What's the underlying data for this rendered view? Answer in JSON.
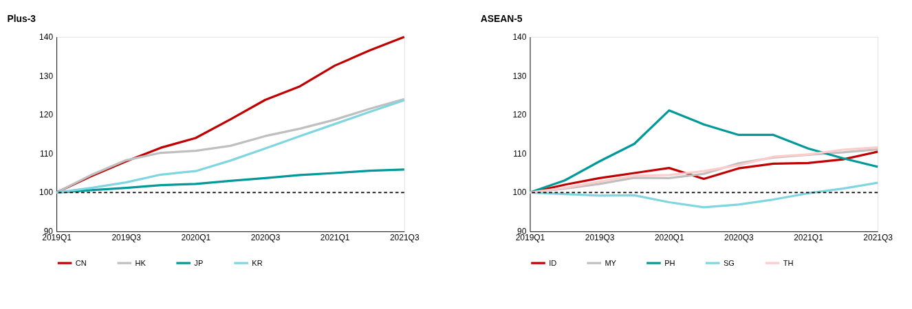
{
  "chart_data": [
    {
      "type": "line",
      "title": "Plus-3",
      "categories": [
        "2019Q1",
        null,
        "2019Q3",
        null,
        "2020Q1",
        null,
        "2020Q3",
        null,
        "2021Q1",
        null,
        "2021Q3"
      ],
      "ylim": [
        90,
        140
      ],
      "yticks": [
        90,
        100,
        110,
        120,
        130,
        140
      ],
      "grid": false,
      "legend": "bottom",
      "line_style": "solid",
      "series": [
        {
          "name": "CN",
          "color": "#c00000",
          "values": [
            100,
            104.2,
            108,
            111.5,
            114,
            118.8,
            123.8,
            127.3,
            132.6,
            136.5,
            140
          ]
        },
        {
          "name": "HK",
          "color": "#bfbfbf",
          "values": [
            100,
            104.5,
            108.3,
            110.2,
            110.7,
            112,
            114.5,
            116.4,
            118.7,
            121.5,
            124
          ]
        },
        {
          "name": "JP",
          "color": "#009999",
          "values": [
            100,
            100.6,
            101.2,
            101.9,
            102.2,
            103,
            103.7,
            104.5,
            105,
            105.6,
            105.9
          ]
        },
        {
          "name": "KR",
          "color": "#7fd6e0",
          "values": [
            100,
            101.2,
            102.6,
            104.6,
            105.5,
            108.2,
            111.3,
            114.5,
            117.6,
            120.7,
            123.7
          ]
        }
      ],
      "ref_lines": [
        {
          "axis": "y",
          "value": 100,
          "color": "#000000",
          "line_style": "dashed"
        }
      ]
    },
    {
      "type": "line",
      "title": "ASEAN-5",
      "categories": [
        "2019Q1",
        null,
        "2019Q3",
        null,
        "2020Q1",
        null,
        "2020Q3",
        null,
        "2021Q1",
        null,
        "2021Q3"
      ],
      "ylim": [
        90,
        140
      ],
      "yticks": [
        90,
        100,
        110,
        120,
        130,
        140
      ],
      "grid": false,
      "legend": "bottom",
      "line_style": "solid",
      "series": [
        {
          "name": "ID",
          "color": "#c00000",
          "values": [
            100,
            102,
            103.7,
            105,
            106.3,
            103.5,
            106.2,
            107.4,
            107.6,
            108.5,
            110.5
          ]
        },
        {
          "name": "MY",
          "color": "#bfbfbf",
          "values": [
            100,
            101,
            102.2,
            103.8,
            103.7,
            104.8,
            107.5,
            109,
            109.7,
            110.3,
            111.1
          ]
        },
        {
          "name": "PH",
          "color": "#009999",
          "values": [
            100,
            103.1,
            108,
            112.5,
            121.1,
            117.5,
            114.8,
            114.8,
            111.3,
            108.8,
            106.6
          ]
        },
        {
          "name": "SG",
          "color": "#7fd6e0",
          "values": [
            100,
            99.6,
            99.2,
            99.3,
            97.5,
            96.2,
            96.9,
            98.2,
            99.8,
            101,
            102.5
          ]
        },
        {
          "name": "TH",
          "color": "#ffcccc",
          "values": [
            100,
            101.2,
            102.8,
            104.3,
            104.5,
            105.5,
            107,
            109.2,
            109.8,
            111,
            111.6
          ]
        }
      ],
      "ref_lines": [
        {
          "axis": "y",
          "value": 100,
          "color": "#000000",
          "line_style": "dashed"
        }
      ]
    }
  ]
}
